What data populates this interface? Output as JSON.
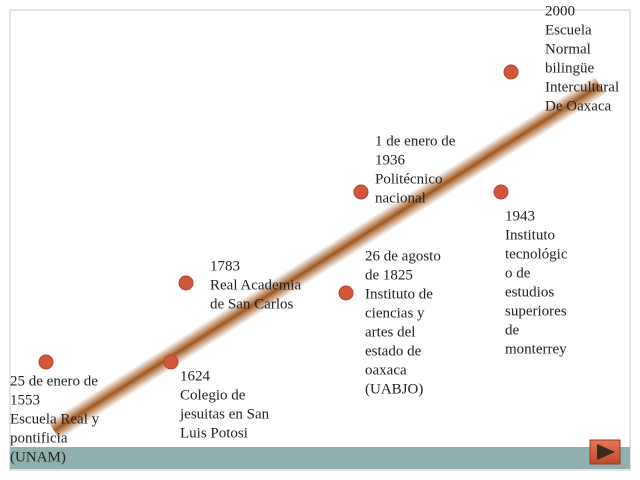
{
  "events": [
    {
      "lines": [
        "25 de enero  de",
        "1553",
        "Escuela Real  y",
        "pontificia",
        "(UNAM)"
      ]
    },
    {
      "lines": [
        "1624",
        "Colegio de",
        "jesuitas en San",
        "Luis Potosi"
      ]
    },
    {
      "lines": [
        "1783",
        "Real Academia",
        "de San Carlos"
      ]
    },
    {
      "lines": [
        "26 de agosto",
        "de  1825",
        "Instituto de",
        "ciencias  y",
        "artes del",
        "estado  de",
        "oaxaca",
        "(UABJO)"
      ]
    },
    {
      "lines": [
        "1 de enero de",
        "1936",
        "Politécnico",
        "nacional"
      ]
    },
    {
      "lines": [
        "1943",
        "Instituto",
        "tecnológic",
        "o  de",
        "estudios",
        "superiores",
        "de",
        "monterrey"
      ]
    },
    {
      "lines": [
        "2000",
        "Escuela",
        "Normal",
        "bilingüe",
        "Intercultural",
        "De Oaxaca"
      ]
    }
  ]
}
